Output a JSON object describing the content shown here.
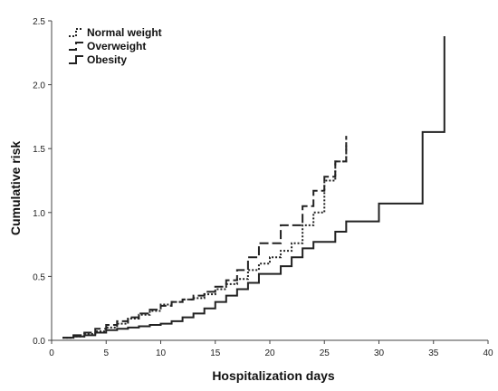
{
  "chart_data": {
    "type": "line",
    "title": "",
    "xlabel": "Hospitalization days",
    "ylabel": "Cumulative risk",
    "xlim": [
      0,
      40
    ],
    "ylim": [
      0,
      2.5
    ],
    "x_ticks": [
      "0",
      "5",
      "10",
      "15",
      "20",
      "25",
      "30",
      "35",
      "40"
    ],
    "y_ticks": [
      "0.0",
      "0.5",
      "1.0",
      "1.5",
      "2.0",
      "2.5"
    ],
    "grid": false,
    "legend_position": "top-left",
    "step": true,
    "series": [
      {
        "name": "Normal weight",
        "line_style": "dotted",
        "color": "#222222",
        "x": [
          1,
          2,
          3,
          4,
          5,
          6,
          7,
          8,
          9,
          10,
          11,
          12,
          13,
          14,
          15,
          16,
          17,
          18,
          19,
          20,
          21,
          22,
          23,
          24,
          25,
          26,
          27
        ],
        "y": [
          0.02,
          0.03,
          0.05,
          0.07,
          0.1,
          0.13,
          0.17,
          0.2,
          0.23,
          0.28,
          0.3,
          0.32,
          0.33,
          0.36,
          0.4,
          0.44,
          0.48,
          0.55,
          0.6,
          0.65,
          0.7,
          0.76,
          0.9,
          1.0,
          1.25,
          1.4,
          1.55
        ]
      },
      {
        "name": "Overweight",
        "line_style": "dashed",
        "color": "#222222",
        "x": [
          1,
          2,
          3,
          4,
          5,
          6,
          7,
          8,
          9,
          10,
          11,
          12,
          13,
          14,
          15,
          16,
          17,
          18,
          19,
          20,
          21,
          22,
          23,
          24,
          25,
          26,
          27
        ],
        "y": [
          0.02,
          0.04,
          0.06,
          0.09,
          0.12,
          0.15,
          0.18,
          0.21,
          0.24,
          0.27,
          0.3,
          0.32,
          0.35,
          0.38,
          0.42,
          0.47,
          0.55,
          0.65,
          0.76,
          0.76,
          0.9,
          0.9,
          1.05,
          1.17,
          1.28,
          1.4,
          1.6
        ]
      },
      {
        "name": "Obesity",
        "line_style": "solid",
        "color": "#222222",
        "x": [
          1,
          2,
          3,
          4,
          5,
          6,
          7,
          8,
          9,
          10,
          11,
          12,
          13,
          14,
          15,
          16,
          17,
          18,
          19,
          20,
          21,
          22,
          23,
          24,
          25,
          26,
          27,
          28,
          30,
          32,
          34,
          36
        ],
        "y": [
          0.02,
          0.03,
          0.04,
          0.06,
          0.08,
          0.09,
          0.1,
          0.11,
          0.12,
          0.13,
          0.15,
          0.18,
          0.21,
          0.25,
          0.3,
          0.35,
          0.4,
          0.45,
          0.52,
          0.52,
          0.58,
          0.65,
          0.72,
          0.77,
          0.77,
          0.85,
          0.93,
          0.93,
          1.07,
          1.07,
          1.63,
          2.38
        ]
      }
    ]
  }
}
